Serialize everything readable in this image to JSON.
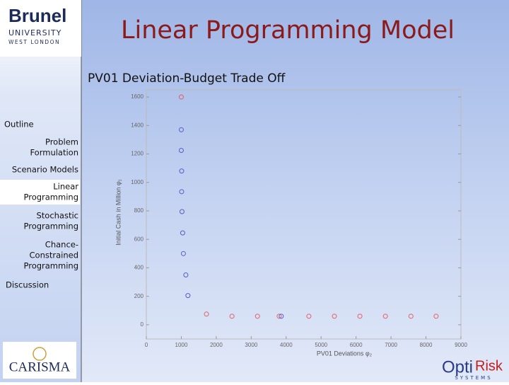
{
  "slide": {
    "title": "Linear Programming Model",
    "logo_top": {
      "name": "Brunel",
      "line1": "UNIVERSITY",
      "line2": "WEST LONDON"
    },
    "logo_bottom_left": "CARISMA",
    "logo_bottom_right": {
      "name1": "Opti",
      "name2": "Risk",
      "sub": "SYSTEMS"
    },
    "nav": [
      {
        "lines": [
          "Outline"
        ],
        "align": "left",
        "active": false
      },
      {
        "lines": [
          "Problem",
          "Formulation"
        ],
        "align": "right",
        "active": false
      },
      {
        "lines": [
          "Scenario Models"
        ],
        "align": "right",
        "active": false
      },
      {
        "lines": [
          "Linear",
          "Programming"
        ],
        "align": "right",
        "active": true
      },
      {
        "lines": [
          "Stochastic",
          "Programming"
        ],
        "align": "right",
        "active": false
      },
      {
        "lines": [
          "Chance-",
          "Constrained",
          "Programming"
        ],
        "align": "right",
        "active": false
      },
      {
        "lines": [
          "Discussion"
        ],
        "align": "left",
        "active": false
      }
    ]
  },
  "chart_data": {
    "type": "scatter",
    "title": "PV01 Deviation-Budget Trade Off",
    "x_label": "PV01 Deviations φ₂",
    "y_label": "Initial Cash in Million φ₁",
    "xlim": [
      0,
      9000
    ],
    "ylim": [
      -100,
      1650
    ],
    "xticks": [
      0,
      1000,
      2000,
      3000,
      4000,
      5000,
      6000,
      7000,
      8000,
      9000
    ],
    "yticks": [
      0,
      200,
      400,
      600,
      800,
      1000,
      1200,
      1400,
      1600
    ],
    "grid": false,
    "series": [
      {
        "color": "#e06060",
        "x": [
          1000,
          1720,
          2450,
          3180,
          3800,
          4650,
          5380,
          6110,
          6840,
          7570,
          8290
        ],
        "values": [
          1600,
          75,
          60,
          60,
          60,
          60,
          60,
          60,
          60,
          60,
          60
        ]
      },
      {
        "color": "#5a5ac8",
        "x": [
          1000,
          1000,
          1010,
          1010,
          1020,
          1040,
          1060,
          1130,
          1190,
          3860
        ],
        "values": [
          1370,
          1225,
          1080,
          935,
          795,
          645,
          500,
          350,
          205,
          60
        ]
      }
    ]
  }
}
